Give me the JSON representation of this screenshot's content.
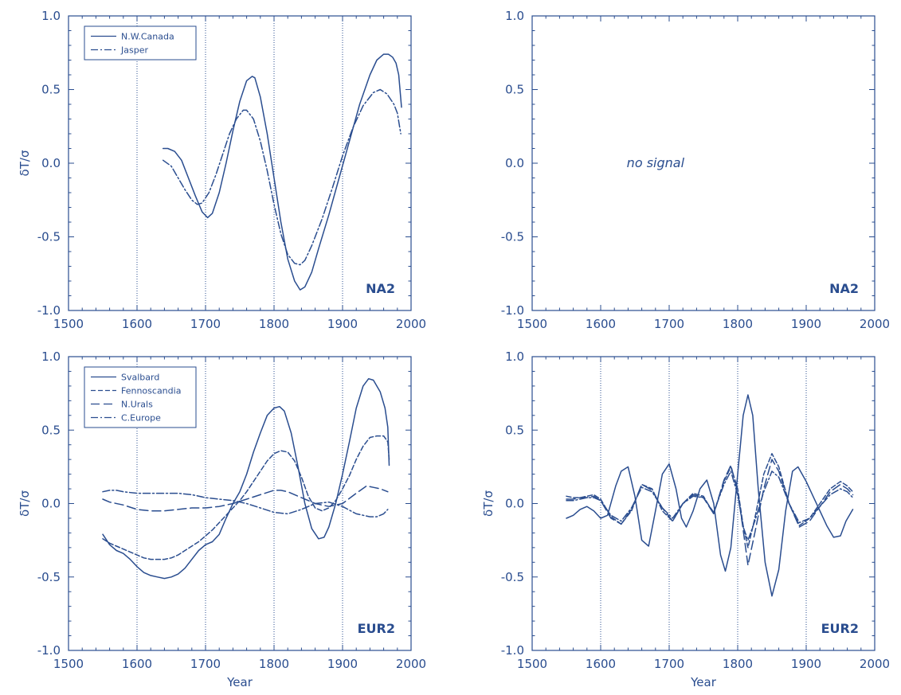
{
  "colors": {
    "ink": "#2a4d8f",
    "background": "#ffffff"
  },
  "chart_data": [
    {
      "type": "line",
      "panel": "top-left",
      "region_label": "NA2",
      "xlabel": "",
      "ylabel": "δT/σ",
      "xlim": [
        1500,
        2000
      ],
      "ylim": [
        -1.0,
        1.0
      ],
      "x_ticks": [
        1500,
        1600,
        1700,
        1800,
        1900,
        2000
      ],
      "x_tick_labels": [
        "1500",
        "1600",
        "1700",
        "1800",
        "1900",
        "2000"
      ],
      "y_ticks": [
        -1.0,
        -0.5,
        0.0,
        0.5,
        1.0
      ],
      "y_tick_labels": [
        "-1.0",
        "-0.5",
        "0.0",
        "0.5",
        "1.0"
      ],
      "vlines": [
        1600,
        1700,
        1800,
        1900
      ],
      "legend": {
        "position": "top-left"
      },
      "annotation": "",
      "series": [
        {
          "name": "N.W.Canada",
          "dash": "solid",
          "x": [
            1638,
            1645,
            1655,
            1665,
            1675,
            1685,
            1695,
            1703,
            1710,
            1720,
            1730,
            1740,
            1750,
            1760,
            1768,
            1772,
            1780,
            1790,
            1800,
            1810,
            1820,
            1830,
            1838,
            1845,
            1855,
            1865,
            1880,
            1895,
            1910,
            1925,
            1940,
            1950,
            1960,
            1967,
            1973,
            1978,
            1982,
            1986
          ],
          "y": [
            0.1,
            0.1,
            0.08,
            0.02,
            -0.1,
            -0.22,
            -0.33,
            -0.37,
            -0.34,
            -0.2,
            0.0,
            0.22,
            0.42,
            0.56,
            0.59,
            0.58,
            0.45,
            0.2,
            -0.1,
            -0.4,
            -0.65,
            -0.8,
            -0.86,
            -0.84,
            -0.74,
            -0.58,
            -0.35,
            -0.1,
            0.15,
            0.4,
            0.6,
            0.7,
            0.74,
            0.74,
            0.72,
            0.68,
            0.6,
            0.38
          ]
        },
        {
          "name": "Jasper",
          "dash": "dashdot",
          "x": [
            1638,
            1650,
            1660,
            1670,
            1680,
            1688,
            1695,
            1705,
            1715,
            1725,
            1735,
            1745,
            1755,
            1760,
            1770,
            1780,
            1790,
            1800,
            1810,
            1820,
            1830,
            1838,
            1845,
            1855,
            1870,
            1885,
            1900,
            1915,
            1930,
            1945,
            1955,
            1965,
            1975,
            1980,
            1985
          ],
          "y": [
            0.02,
            -0.02,
            -0.1,
            -0.18,
            -0.25,
            -0.28,
            -0.27,
            -0.2,
            -0.08,
            0.06,
            0.2,
            0.3,
            0.36,
            0.36,
            0.3,
            0.15,
            -0.05,
            -0.28,
            -0.48,
            -0.62,
            -0.68,
            -0.69,
            -0.66,
            -0.56,
            -0.38,
            -0.17,
            0.05,
            0.24,
            0.39,
            0.48,
            0.5,
            0.47,
            0.4,
            0.34,
            0.2
          ]
        }
      ]
    },
    {
      "type": "line",
      "panel": "top-right",
      "region_label": "NA2",
      "xlabel": "",
      "ylabel": "",
      "xlim": [
        1500,
        2000
      ],
      "ylim": [
        -1.0,
        1.0
      ],
      "x_ticks": [
        1500,
        1600,
        1700,
        1800,
        1900,
        2000
      ],
      "x_tick_labels": [
        "1500",
        "1600",
        "1700",
        "1800",
        "1900",
        "2000"
      ],
      "y_ticks": [
        -1.0,
        -0.5,
        0.0,
        0.5,
        1.0
      ],
      "y_tick_labels": [
        "-1.0",
        "-0.5",
        "0.0",
        "0.5",
        "1.0"
      ],
      "vlines": [],
      "annotation": "no signal",
      "series": []
    },
    {
      "type": "line",
      "panel": "bottom-left",
      "region_label": "EUR2",
      "xlabel": "Year",
      "ylabel": "δT/σ",
      "xlim": [
        1500,
        2000
      ],
      "ylim": [
        -1.0,
        1.0
      ],
      "x_ticks": [
        1500,
        1600,
        1700,
        1800,
        1900,
        2000
      ],
      "x_tick_labels": [
        "1500",
        "1600",
        "1700",
        "1800",
        "1900",
        "2000"
      ],
      "y_ticks": [
        -1.0,
        -0.5,
        0.0,
        0.5,
        1.0
      ],
      "y_tick_labels": [
        "-1.0",
        "-0.5",
        "0.0",
        "0.5",
        "1.0"
      ],
      "vlines": [
        1600,
        1700,
        1800,
        1900
      ],
      "legend": {
        "position": "top-left"
      },
      "annotation": "",
      "series": [
        {
          "name": "Svalbard",
          "dash": "solid",
          "x": [
            1550,
            1560,
            1570,
            1580,
            1590,
            1600,
            1610,
            1620,
            1630,
            1640,
            1650,
            1660,
            1670,
            1680,
            1690,
            1700,
            1710,
            1720,
            1730,
            1740,
            1750,
            1760,
            1770,
            1780,
            1790,
            1800,
            1808,
            1815,
            1825,
            1835,
            1845,
            1855,
            1865,
            1873,
            1880,
            1890,
            1900,
            1910,
            1920,
            1930,
            1938,
            1945,
            1955,
            1962,
            1966,
            1968
          ],
          "y": [
            -0.21,
            -0.28,
            -0.32,
            -0.34,
            -0.38,
            -0.43,
            -0.47,
            -0.49,
            -0.5,
            -0.51,
            -0.5,
            -0.48,
            -0.44,
            -0.38,
            -0.32,
            -0.28,
            -0.26,
            -0.21,
            -0.1,
            0.0,
            0.08,
            0.2,
            0.35,
            0.48,
            0.6,
            0.65,
            0.66,
            0.63,
            0.48,
            0.25,
            0.0,
            -0.17,
            -0.24,
            -0.23,
            -0.16,
            0.0,
            0.2,
            0.42,
            0.65,
            0.8,
            0.85,
            0.84,
            0.76,
            0.65,
            0.52,
            0.26
          ]
        },
        {
          "name": "Fennoscandia",
          "dash": "dashed",
          "x": [
            1550,
            1560,
            1570,
            1580,
            1590,
            1600,
            1610,
            1620,
            1630,
            1640,
            1650,
            1660,
            1670,
            1680,
            1690,
            1700,
            1710,
            1720,
            1730,
            1740,
            1750,
            1760,
            1770,
            1780,
            1790,
            1800,
            1810,
            1820,
            1830,
            1840,
            1850,
            1860,
            1870,
            1880,
            1890,
            1900,
            1910,
            1920,
            1930,
            1940,
            1950,
            1960,
            1966,
            1968
          ],
          "y": [
            -0.24,
            -0.27,
            -0.29,
            -0.31,
            -0.33,
            -0.35,
            -0.37,
            -0.38,
            -0.38,
            -0.38,
            -0.37,
            -0.35,
            -0.32,
            -0.29,
            -0.26,
            -0.22,
            -0.18,
            -0.13,
            -0.08,
            -0.03,
            0.02,
            0.08,
            0.15,
            0.22,
            0.29,
            0.34,
            0.36,
            0.35,
            0.29,
            0.18,
            0.05,
            -0.03,
            -0.05,
            -0.03,
            0.02,
            0.1,
            0.19,
            0.3,
            0.39,
            0.45,
            0.46,
            0.46,
            0.42,
            0.3
          ]
        },
        {
          "name": "N.Urals",
          "dash": "longdash",
          "x": [
            1550,
            1560,
            1580,
            1600,
            1620,
            1640,
            1660,
            1680,
            1700,
            1720,
            1740,
            1760,
            1780,
            1800,
            1810,
            1820,
            1840,
            1860,
            1880,
            1900,
            1920,
            1935,
            1945,
            1955,
            1966
          ],
          "y": [
            0.03,
            0.01,
            -0.01,
            -0.04,
            -0.05,
            -0.05,
            -0.04,
            -0.03,
            -0.03,
            -0.02,
            0.0,
            0.03,
            0.06,
            0.09,
            0.09,
            0.08,
            0.04,
            0.0,
            -0.02,
            0.0,
            0.07,
            0.12,
            0.11,
            0.1,
            0.08
          ]
        },
        {
          "name": "C.Europe",
          "dash": "dashdot",
          "x": [
            1550,
            1560,
            1570,
            1580,
            1600,
            1620,
            1640,
            1660,
            1680,
            1700,
            1720,
            1740,
            1760,
            1780,
            1800,
            1820,
            1840,
            1860,
            1880,
            1900,
            1920,
            1940,
            1950,
            1960,
            1966
          ],
          "y": [
            0.08,
            0.09,
            0.09,
            0.08,
            0.07,
            0.07,
            0.07,
            0.07,
            0.06,
            0.04,
            0.03,
            0.02,
            0.0,
            -0.03,
            -0.06,
            -0.07,
            -0.04,
            0.0,
            0.01,
            -0.02,
            -0.07,
            -0.09,
            -0.09,
            -0.07,
            -0.04
          ]
        }
      ]
    },
    {
      "type": "line",
      "panel": "bottom-right",
      "region_label": "EUR2",
      "xlabel": "Year",
      "ylabel": "δT/σ",
      "xlim": [
        1500,
        2000
      ],
      "ylim": [
        -1.0,
        1.0
      ],
      "x_ticks": [
        1500,
        1600,
        1700,
        1800,
        1900,
        2000
      ],
      "x_tick_labels": [
        "1500",
        "1600",
        "1700",
        "1800",
        "1900",
        "2000"
      ],
      "y_ticks": [
        -1.0,
        -0.5,
        0.0,
        0.5,
        1.0
      ],
      "y_tick_labels": [
        "-1.0",
        "-0.5",
        "0.0",
        "0.5",
        "1.0"
      ],
      "vlines": [
        1600,
        1700,
        1800,
        1900
      ],
      "annotation": "",
      "series": [
        {
          "name": "",
          "dash": "solid",
          "x": [
            1550,
            1560,
            1570,
            1580,
            1590,
            1600,
            1610,
            1622,
            1630,
            1640,
            1650,
            1660,
            1670,
            1680,
            1690,
            1700,
            1710,
            1718,
            1725,
            1735,
            1745,
            1755,
            1765,
            1775,
            1782,
            1790,
            1800,
            1808,
            1815,
            1822,
            1830,
            1840,
            1850,
            1860,
            1870,
            1880,
            1888,
            1900,
            1910,
            1920,
            1930,
            1940,
            1950,
            1958,
            1968
          ],
          "y": [
            -0.1,
            -0.08,
            -0.04,
            -0.02,
            -0.05,
            -0.1,
            -0.08,
            0.12,
            0.22,
            0.25,
            0.05,
            -0.25,
            -0.29,
            -0.05,
            0.2,
            0.27,
            0.1,
            -0.1,
            -0.16,
            -0.05,
            0.1,
            0.16,
            0.0,
            -0.35,
            -0.46,
            -0.3,
            0.2,
            0.6,
            0.74,
            0.6,
            0.1,
            -0.4,
            -0.63,
            -0.45,
            -0.05,
            0.22,
            0.25,
            0.15,
            0.05,
            -0.05,
            -0.15,
            -0.23,
            -0.22,
            -0.12,
            -0.04
          ]
        },
        {
          "name": "",
          "dash": "dashed",
          "x": [
            1550,
            1560,
            1570,
            1580,
            1590,
            1600,
            1615,
            1630,
            1645,
            1660,
            1675,
            1690,
            1705,
            1720,
            1735,
            1750,
            1765,
            1780,
            1790,
            1800,
            1808,
            1815,
            1825,
            1838,
            1850,
            1860,
            1875,
            1890,
            1905,
            1920,
            1935,
            1950,
            1960,
            1968
          ],
          "y": [
            0.05,
            0.04,
            0.04,
            0.05,
            0.06,
            0.03,
            -0.09,
            -0.14,
            -0.05,
            0.13,
            0.1,
            -0.05,
            -0.12,
            0.0,
            0.07,
            0.05,
            -0.07,
            0.15,
            0.25,
            0.1,
            -0.15,
            -0.3,
            -0.1,
            0.2,
            0.34,
            0.25,
            0.0,
            -0.15,
            -0.1,
            0.0,
            0.1,
            0.15,
            0.12,
            0.08
          ]
        },
        {
          "name": "",
          "dash": "longdash",
          "x": [
            1550,
            1560,
            1570,
            1580,
            1590,
            1600,
            1615,
            1630,
            1645,
            1660,
            1675,
            1690,
            1705,
            1720,
            1735,
            1750,
            1765,
            1780,
            1790,
            1800,
            1808,
            1815,
            1825,
            1838,
            1850,
            1860,
            1875,
            1890,
            1905,
            1920,
            1935,
            1950,
            1960,
            1968
          ],
          "y": [
            0.03,
            0.03,
            0.04,
            0.04,
            0.05,
            0.02,
            -0.1,
            -0.14,
            -0.04,
            0.13,
            0.09,
            -0.03,
            -0.12,
            0.0,
            0.06,
            0.04,
            -0.07,
            0.16,
            0.26,
            0.08,
            -0.18,
            -0.42,
            -0.2,
            0.1,
            0.3,
            0.22,
            0.0,
            -0.16,
            -0.12,
            -0.02,
            0.08,
            0.13,
            0.1,
            0.06
          ]
        },
        {
          "name": "",
          "dash": "dashdot",
          "x": [
            1550,
            1560,
            1570,
            1580,
            1590,
            1600,
            1615,
            1630,
            1645,
            1660,
            1675,
            1690,
            1705,
            1720,
            1735,
            1750,
            1765,
            1780,
            1790,
            1800,
            1808,
            1815,
            1825,
            1838,
            1850,
            1860,
            1875,
            1890,
            1905,
            1920,
            1935,
            1950,
            1960,
            1968
          ],
          "y": [
            0.02,
            0.02,
            0.03,
            0.04,
            0.04,
            0.02,
            -0.08,
            -0.12,
            -0.03,
            0.11,
            0.08,
            -0.03,
            -0.1,
            0.0,
            0.05,
            0.04,
            -0.06,
            0.13,
            0.22,
            0.06,
            -0.16,
            -0.25,
            -0.12,
            0.08,
            0.22,
            0.18,
            0.0,
            -0.13,
            -0.1,
            -0.02,
            0.06,
            0.1,
            0.08,
            0.04
          ]
        }
      ]
    }
  ]
}
